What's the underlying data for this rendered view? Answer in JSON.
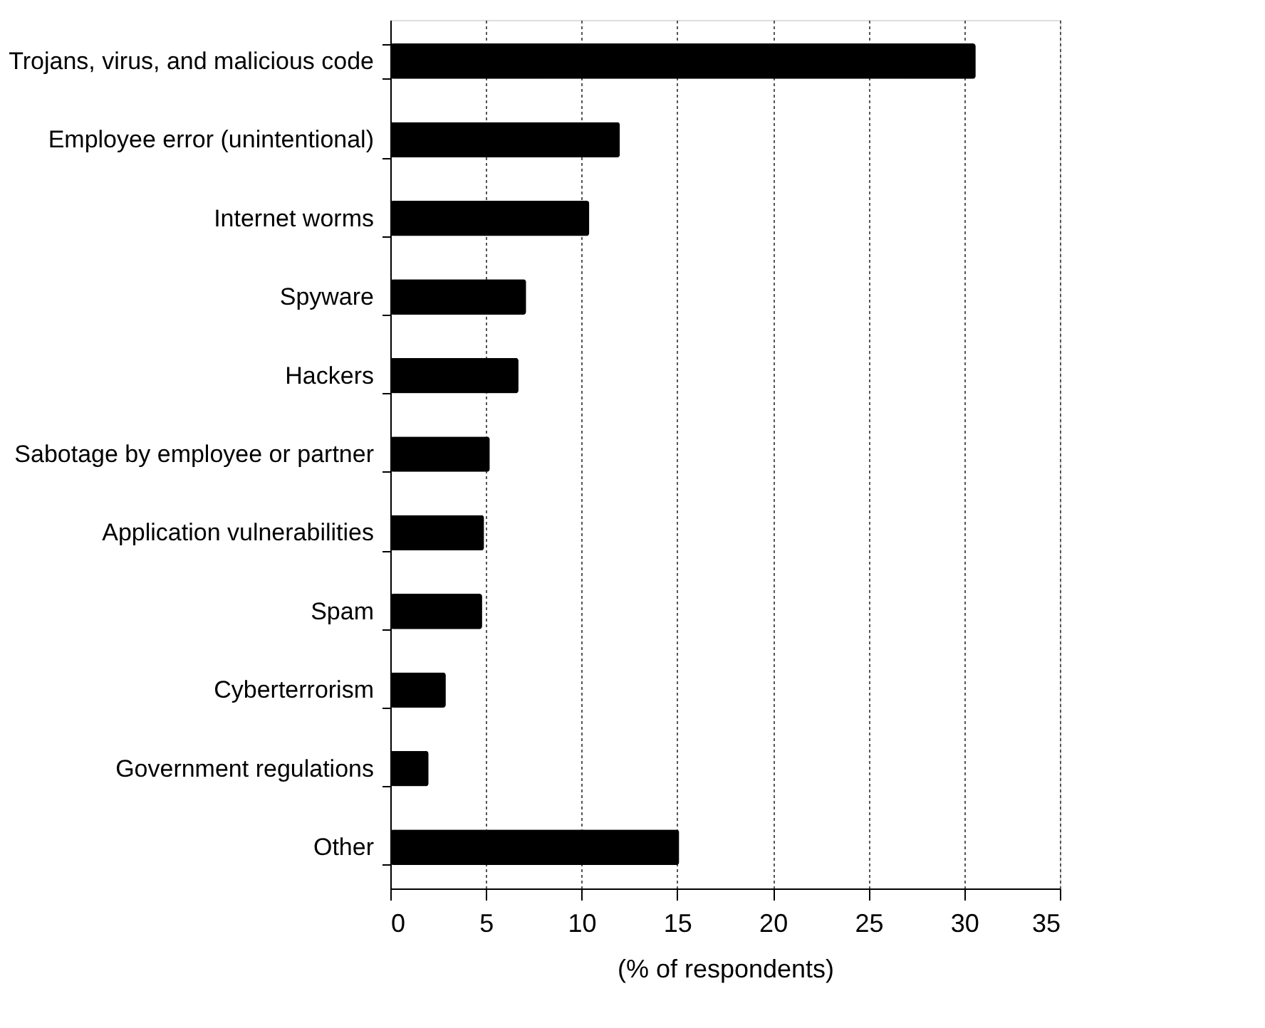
{
  "chart_data": {
    "type": "bar",
    "orientation": "horizontal",
    "xlabel": "(% of respondents)",
    "categories": [
      "Trojans, virus, and malicious code",
      "Employee error (unintentional)",
      "Internet worms",
      "Spyware",
      "Hackers",
      "Sabotage by employee or partner",
      "Application vulnerabilities",
      "Spam",
      "Cyberterrorism",
      "Government regulations",
      "Other"
    ],
    "values": [
      30.6,
      12.0,
      10.4,
      7.1,
      6.7,
      5.2,
      4.9,
      4.8,
      2.9,
      2.0,
      15.1
    ],
    "color": "#000000",
    "xlim": [
      0,
      35
    ],
    "xticks": [
      0,
      5,
      10,
      15,
      20,
      25,
      30,
      35
    ],
    "grid": "x"
  }
}
